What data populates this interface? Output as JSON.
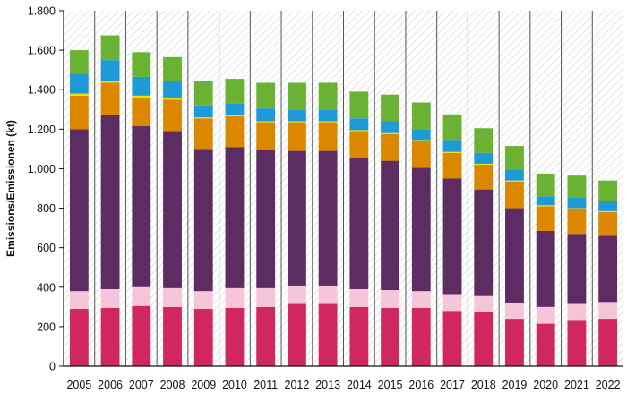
{
  "chart_data": {
    "type": "bar",
    "stacked": true,
    "ylabel": "Emissions/Emissionen (kt)",
    "xlabel": "",
    "ylim": [
      0,
      1800
    ],
    "yticks": [
      0,
      200,
      400,
      600,
      800,
      1000,
      1200,
      1400,
      1600,
      1800
    ],
    "ytick_labels": [
      "0",
      "200",
      "400",
      "600",
      "800",
      "1.000",
      "1.200",
      "1.400",
      "1.600",
      "1.800"
    ],
    "grid": false,
    "legend": "none",
    "categories": [
      "2005",
      "2006",
      "2007",
      "2008",
      "2009",
      "2010",
      "2011",
      "2012",
      "2013",
      "2014",
      "2015",
      "2016",
      "2017",
      "2018",
      "2019",
      "2020",
      "2021",
      "2022"
    ],
    "series": [
      {
        "color": "#d0275e",
        "values": [
          290,
          295,
          305,
          300,
          290,
          295,
          300,
          315,
          315,
          300,
          295,
          295,
          280,
          275,
          240,
          215,
          230,
          240
        ]
      },
      {
        "color": "#f7c5d9",
        "values": [
          90,
          95,
          95,
          95,
          90,
          100,
          95,
          90,
          90,
          90,
          90,
          85,
          85,
          80,
          80,
          85,
          85,
          85
        ]
      },
      {
        "color": "#5d2c62",
        "values": [
          820,
          880,
          815,
          795,
          720,
          715,
          700,
          685,
          685,
          665,
          655,
          625,
          585,
          540,
          480,
          385,
          355,
          335
        ]
      },
      {
        "color": "#db8700",
        "values": [
          170,
          165,
          145,
          160,
          155,
          155,
          140,
          145,
          145,
          135,
          135,
          135,
          130,
          125,
          135,
          125,
          125,
          120
        ]
      },
      {
        "color": "#f2e200",
        "values": [
          10,
          10,
          10,
          10,
          5,
          5,
          5,
          5,
          5,
          5,
          5,
          5,
          5,
          5,
          5,
          5,
          5,
          5
        ]
      },
      {
        "color": "#1e9bd7",
        "values": [
          100,
          105,
          95,
          85,
          60,
          60,
          65,
          60,
          60,
          60,
          60,
          55,
          60,
          55,
          55,
          45,
          55,
          50
        ]
      },
      {
        "color": "#6ab233",
        "values": [
          120,
          125,
          125,
          120,
          125,
          125,
          130,
          135,
          135,
          135,
          135,
          135,
          130,
          125,
          120,
          115,
          110,
          105
        ]
      }
    ]
  }
}
